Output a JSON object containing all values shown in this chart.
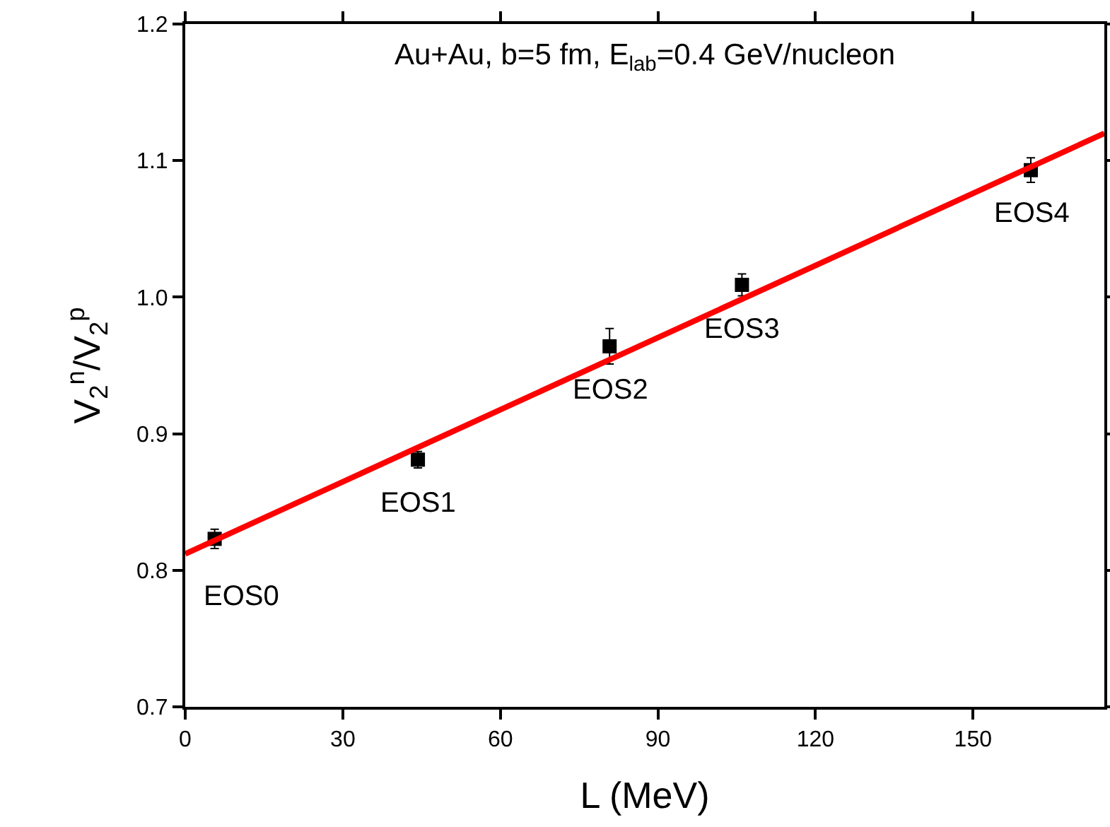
{
  "chart_data": {
    "type": "scatter",
    "title": "Au+Au, b=5 fm, E$_{lab}$=0.4 GeV/nucleon",
    "xlabel": "L (MeV)",
    "ylabel": "V$_{2}$$^{n}$/V$_{2}$$^{p}$",
    "xlim": [
      0,
      175
    ],
    "xticks": [
      0,
      30,
      60,
      90,
      120,
      150
    ],
    "ylim": [
      0.7,
      1.2
    ],
    "yticks": [
      0.7,
      0.8,
      0.9,
      {
        "value": 1,
        "label": "1.0"
      },
      1.1,
      1.2
    ],
    "grid": false,
    "marker": "square",
    "series": [
      {
        "color": "#000000",
        "x": [
          5.6,
          44.3,
          80.8,
          106,
          161
        ],
        "values": [
          0.823,
          0.881,
          0.964,
          1.009,
          1.093
        ],
        "errors": [
          0.007,
          0.006,
          0.013,
          0.008,
          0.009
        ]
      },
      {
        "type": "line",
        "color": "#ff0000",
        "marker": "none",
        "line_style": "solid",
        "x": [
          0,
          175
        ],
        "values": [
          0.812,
          1.12
        ]
      }
    ],
    "annotations": [
      {
        "text": "EOS0",
        "x": 5.6,
        "y": 0.823
      },
      {
        "text": "EOS1",
        "x": 44.3,
        "y": 0.881
      },
      {
        "text": "EOS2",
        "x": 80.8,
        "y": 0.964
      },
      {
        "text": "EOS3",
        "x": 106,
        "y": 1.009
      },
      {
        "text": "EOS4",
        "x": 161,
        "y": 1.093
      }
    ]
  }
}
